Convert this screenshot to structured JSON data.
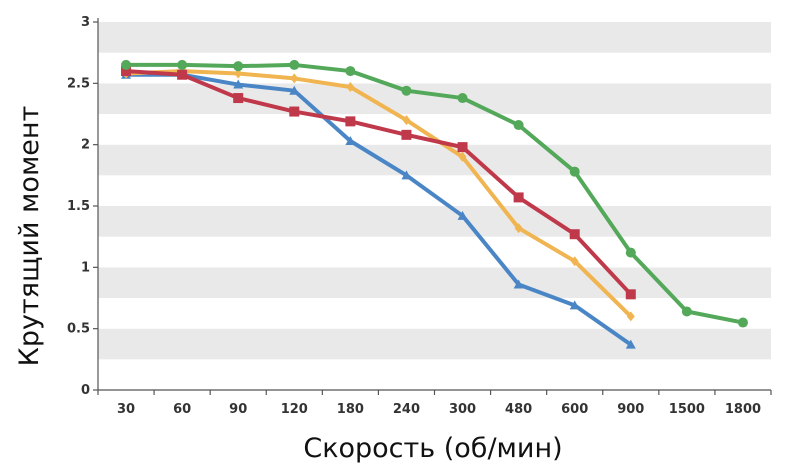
{
  "chart_data": {
    "type": "line",
    "xlabel": "Скорость (об/мин)",
    "ylabel": "Крутящий момент",
    "categories": [
      "30",
      "60",
      "90",
      "120",
      "180",
      "240",
      "300",
      "480",
      "600",
      "900",
      "1500",
      "1800"
    ],
    "y_ticks": [
      "0",
      "0.5",
      "1",
      "1.5",
      "2",
      "2.5",
      "3"
    ],
    "ylim": [
      0,
      3
    ],
    "grid": "alternating horizontal bands",
    "legend": "none",
    "series": [
      {
        "color": "#4a86c5",
        "marker": "triangle",
        "values": [
          2.57,
          2.57,
          2.49,
          2.44,
          2.03,
          1.75,
          1.42,
          0.86,
          0.69,
          0.37,
          null,
          null
        ]
      },
      {
        "color": "#f0b451",
        "marker": "diamond",
        "values": [
          2.58,
          2.6,
          2.58,
          2.54,
          2.47,
          2.2,
          1.9,
          1.32,
          1.05,
          0.6,
          null,
          null
        ]
      },
      {
        "color": "#c0394a",
        "marker": "square",
        "values": [
          2.6,
          2.57,
          2.38,
          2.27,
          2.19,
          2.08,
          1.98,
          1.57,
          1.27,
          0.78,
          null,
          null
        ]
      },
      {
        "color": "#53a85a",
        "marker": "circle",
        "values": [
          2.65,
          2.65,
          2.64,
          2.65,
          2.6,
          2.44,
          2.38,
          2.16,
          1.78,
          1.12,
          0.64,
          0.55
        ]
      }
    ]
  }
}
